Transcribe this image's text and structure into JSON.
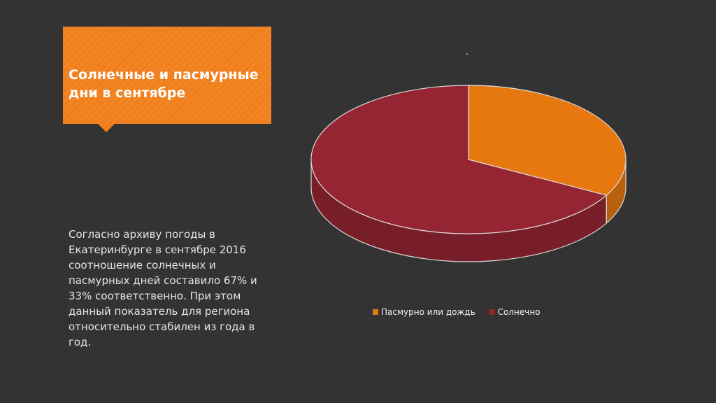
{
  "slide": {
    "title": "Солнечные и пасмурные дни в сентябре",
    "body": "Согласно архиву погоды в Екатеринбурге в сентябре 2016 соотношение солнечных и пасмурных дней составило 67% и 33% соответственно. При этом данный показатель для региона относительно стабилен из года в год.",
    "dot": "."
  },
  "chart_data": {
    "type": "pie",
    "title": "",
    "categories": [
      "Пасмурно или дождь",
      "Солнечно"
    ],
    "values": [
      33,
      67
    ],
    "colors": [
      "#e6780f",
      "#962533"
    ],
    "legend_position": "bottom",
    "style": "3d"
  }
}
